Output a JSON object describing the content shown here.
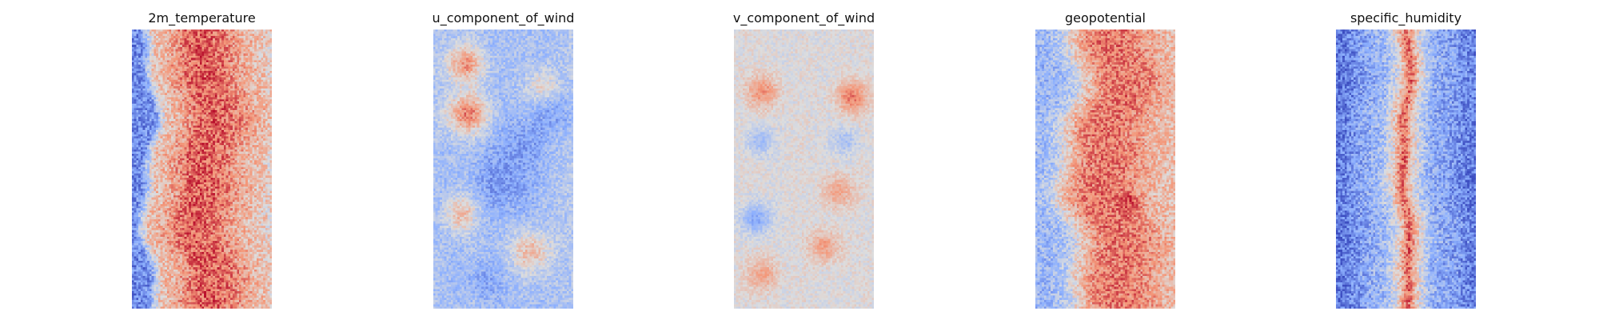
{
  "chart_data": [
    {
      "type": "heatmap",
      "title": "2m_temperature",
      "colormap": "coolwarm",
      "axes_visible": false,
      "grid": false,
      "grid_cols": 64,
      "grid_rows": 128,
      "pattern": "warm band filling most of the panel, cooler noisy strip along the left edge and lighter speckles near the right edge",
      "profile": [
        0.15,
        0.18,
        0.6,
        0.65,
        0.72,
        0.82,
        0.85,
        0.83,
        0.8,
        0.72,
        0.66,
        0.62,
        0.56
      ],
      "noise": 0.14,
      "wave": 0.05
    },
    {
      "type": "heatmap",
      "title": "u_component_of_wind",
      "colormap": "coolwarm",
      "axes_visible": false,
      "grid": false,
      "grid_cols": 64,
      "grid_rows": 128,
      "pattern": "mostly light-blue field with scattered darker blue and red patches",
      "profile": [
        0.35,
        0.33,
        0.34,
        0.36,
        0.34,
        0.32,
        0.33,
        0.35,
        0.34,
        0.33,
        0.35,
        0.36,
        0.38
      ],
      "noise": 0.1,
      "wave": 0.05,
      "blobs": [
        {
          "cx": 0.22,
          "cy": 0.12,
          "r": 0.1,
          "a": 0.38
        },
        {
          "cx": 0.24,
          "cy": 0.3,
          "r": 0.1,
          "a": 0.45
        },
        {
          "cx": 0.2,
          "cy": 0.66,
          "r": 0.09,
          "a": 0.28
        },
        {
          "cx": 0.7,
          "cy": 0.8,
          "r": 0.1,
          "a": 0.3
        },
        {
          "cx": 0.78,
          "cy": 0.2,
          "r": 0.08,
          "a": 0.2
        },
        {
          "cx": 0.5,
          "cy": 0.55,
          "r": 0.16,
          "a": -0.14
        },
        {
          "cx": 0.65,
          "cy": 0.4,
          "r": 0.12,
          "a": -0.12
        },
        {
          "cx": 0.88,
          "cy": 0.3,
          "r": 0.1,
          "a": -0.1
        },
        {
          "cx": 0.35,
          "cy": 0.9,
          "r": 0.1,
          "a": -0.1
        }
      ]
    },
    {
      "type": "heatmap",
      "title": "v_component_of_wind",
      "colormap": "coolwarm",
      "axes_visible": false,
      "grid": false,
      "grid_cols": 64,
      "grid_rows": 128,
      "pattern": "near-neutral grey field with small scattered red and blue streaks",
      "profile": [
        0.5,
        0.51,
        0.5,
        0.5,
        0.49,
        0.5,
        0.51,
        0.5,
        0.49,
        0.5,
        0.5,
        0.51,
        0.5
      ],
      "noise": 0.07,
      "wave": 0.03,
      "blobs": [
        {
          "cx": 0.2,
          "cy": 0.22,
          "r": 0.08,
          "a": 0.25
        },
        {
          "cx": 0.85,
          "cy": 0.24,
          "r": 0.08,
          "a": 0.3
        },
        {
          "cx": 0.75,
          "cy": 0.58,
          "r": 0.08,
          "a": 0.2
        },
        {
          "cx": 0.65,
          "cy": 0.78,
          "r": 0.08,
          "a": 0.22
        },
        {
          "cx": 0.2,
          "cy": 0.88,
          "r": 0.08,
          "a": 0.2
        },
        {
          "cx": 0.15,
          "cy": 0.68,
          "r": 0.08,
          "a": -0.25
        },
        {
          "cx": 0.18,
          "cy": 0.4,
          "r": 0.07,
          "a": -0.18
        },
        {
          "cx": 0.8,
          "cy": 0.4,
          "r": 0.07,
          "a": -0.15
        }
      ]
    },
    {
      "type": "heatmap",
      "title": "geopotential",
      "colormap": "coolwarm",
      "axes_visible": false,
      "grid": false,
      "grid_cols": 64,
      "grid_rows": 128,
      "pattern": "warm band across most of the panel, cooler blue wavy strip on the left and lighter patches on the right",
      "profile": [
        0.3,
        0.32,
        0.38,
        0.55,
        0.7,
        0.78,
        0.8,
        0.8,
        0.78,
        0.74,
        0.68,
        0.64,
        0.62
      ],
      "noise": 0.13,
      "wave": 0.07,
      "blobs": [
        {
          "cx": 0.68,
          "cy": 0.62,
          "r": 0.06,
          "a": 0.15
        }
      ]
    },
    {
      "type": "heatmap",
      "title": "specific_humidity",
      "colormap": "coolwarm",
      "axes_visible": false,
      "grid": false,
      "grid_cols": 64,
      "grid_rows": 128,
      "pattern": "blue field, darker blue at the edges, with a narrow red vertical band in the middle",
      "profile": [
        0.1,
        0.15,
        0.22,
        0.28,
        0.32,
        0.5,
        0.85,
        0.5,
        0.3,
        0.24,
        0.22,
        0.16,
        0.12
      ],
      "noise": 0.14,
      "wave": 0.025
    }
  ]
}
